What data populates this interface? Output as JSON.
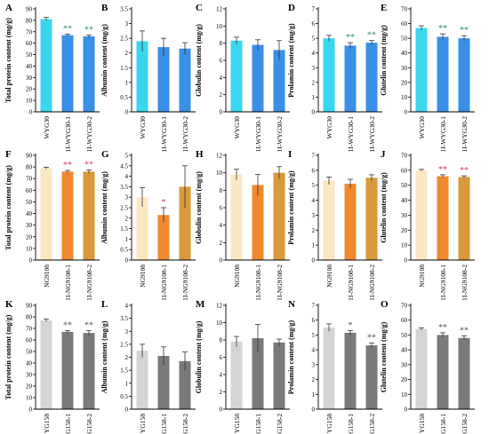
{
  "colors": {
    "wyg_ctrl": "#3ad6f0",
    "wyg_line": "#3a8fe6",
    "ng_ctrl": "#fbe7c2",
    "ng_line1": "#f0892e",
    "ng_line2": "#d89a3a",
    "yg_ctrl": "#d4d4d4",
    "yg_line": "#7a7a7a",
    "sig_dark": "#2e8f5c",
    "sig_pink": "#d63a6b",
    "sig_gray": "#555555",
    "axis": "#000000"
  },
  "chart_data": [
    {
      "panel": "A",
      "type": "bar",
      "ylabel": "Total protein content (mg/g)",
      "ylim": [
        0,
        90
      ],
      "yticks": [
        0,
        10,
        20,
        30,
        40,
        50,
        60,
        70,
        80,
        90
      ],
      "categories": [
        "WYG30",
        "1I-WYG30-1",
        "1I-WYG30-2"
      ],
      "values": [
        81,
        67,
        66
      ],
      "errors": [
        1.5,
        1,
        1.2
      ],
      "significance": [
        "",
        "**",
        "**"
      ]
    },
    {
      "panel": "B",
      "type": "bar",
      "ylabel": "Albumin content (mg/g)",
      "ylim": [
        0,
        3.5
      ],
      "yticks": [
        0,
        0.5,
        1,
        1.5,
        2,
        2.5,
        3,
        3.5
      ],
      "categories": [
        "WYG30",
        "1I-WYG30-1",
        "1I-WYG30-2"
      ],
      "values": [
        2.4,
        2.2,
        2.15
      ],
      "errors": [
        0.35,
        0.3,
        0.2
      ],
      "significance": [
        "",
        "",
        ""
      ]
    },
    {
      "panel": "C",
      "type": "bar",
      "ylabel": "Globulin content (mg/g)",
      "ylim": [
        0,
        12
      ],
      "yticks": [
        0,
        2,
        4,
        6,
        8,
        10,
        12
      ],
      "categories": [
        "WYG30",
        "1I-WYG30-1",
        "1I-WYG30-2"
      ],
      "values": [
        8.3,
        7.8,
        7.2
      ],
      "errors": [
        0.4,
        0.6,
        1.1
      ],
      "significance": [
        "",
        "",
        ""
      ]
    },
    {
      "panel": "D",
      "type": "bar",
      "ylabel": "Prolamin content (mg/g)",
      "ylim": [
        0,
        7
      ],
      "yticks": [
        0,
        1,
        2,
        3,
        4,
        5,
        6,
        7
      ],
      "categories": [
        "WYG30",
        "1I-WYG30-1",
        "1I-WYG30-2"
      ],
      "values": [
        5.0,
        4.5,
        4.7
      ],
      "errors": [
        0.2,
        0.2,
        0.15
      ],
      "significance": [
        "",
        "**",
        "**"
      ]
    },
    {
      "panel": "E",
      "type": "bar",
      "ylabel": "Glutelin content (mg/g)",
      "ylim": [
        0,
        70
      ],
      "yticks": [
        0,
        10,
        20,
        30,
        40,
        50,
        60,
        70
      ],
      "categories": [
        "WYG30",
        "1I-WYG30-1",
        "1I-WYG30-2"
      ],
      "values": [
        57,
        51,
        50
      ],
      "errors": [
        1.5,
        2,
        1.8
      ],
      "significance": [
        "",
        "**",
        "**"
      ]
    },
    {
      "panel": "F",
      "type": "bar",
      "ylabel": "Total protein content (mg/g)",
      "ylim": [
        0,
        90
      ],
      "yticks": [
        0,
        10,
        20,
        30,
        40,
        50,
        60,
        70,
        80,
        90
      ],
      "categories": [
        "NG9108",
        "1I-NG9108-1",
        "1I-NG9108-2"
      ],
      "values": [
        79,
        76,
        76
      ],
      "errors": [
        0.8,
        1,
        1.5
      ],
      "significance": [
        "",
        "**",
        "**"
      ]
    },
    {
      "panel": "G",
      "type": "bar",
      "ylabel": "Albumin content (mg/g)",
      "ylim": [
        0,
        5
      ],
      "yticks": [
        0,
        0.5,
        1,
        1.5,
        2,
        2.5,
        3,
        3.5,
        4,
        4.5,
        5
      ],
      "categories": [
        "NG9108",
        "1I-NG9108-1",
        "1I-NG9108-2"
      ],
      "values": [
        3.0,
        2.15,
        3.5
      ],
      "errors": [
        0.45,
        0.35,
        1.0
      ],
      "significance": [
        "",
        "*",
        ""
      ]
    },
    {
      "panel": "H",
      "type": "bar",
      "ylabel": "Globulin content (mg/g)",
      "ylim": [
        0,
        12
      ],
      "yticks": [
        0,
        2,
        4,
        6,
        8,
        10,
        12
      ],
      "categories": [
        "NG9108",
        "1I-NG9108-1",
        "1I-NG9108-2"
      ],
      "values": [
        9.8,
        8.6,
        10.0
      ],
      "errors": [
        0.6,
        1.2,
        0.7
      ],
      "significance": [
        "",
        "",
        ""
      ]
    },
    {
      "panel": "I",
      "type": "bar",
      "ylabel": "Prolamin content (mg/g)",
      "ylim": [
        0,
        7
      ],
      "yticks": [
        0,
        1,
        2,
        3,
        4,
        5,
        6,
        7
      ],
      "categories": [
        "NG9108",
        "1I-NG9108-1",
        "1I-NG9108-2"
      ],
      "values": [
        5.3,
        5.1,
        5.5
      ],
      "errors": [
        0.25,
        0.3,
        0.2
      ],
      "significance": [
        "",
        "",
        ""
      ]
    },
    {
      "panel": "J",
      "type": "bar",
      "ylabel": "Glutelin content (mg/g)",
      "ylim": [
        0,
        70
      ],
      "yticks": [
        0,
        10,
        20,
        30,
        40,
        50,
        60,
        70
      ],
      "categories": [
        "NG9108",
        "1I-NG9108-1",
        "1I-NG9108-2"
      ],
      "values": [
        60,
        56,
        55.5
      ],
      "errors": [
        0.6,
        1,
        0.8
      ],
      "significance": [
        "",
        "**",
        "**"
      ]
    },
    {
      "panel": "K",
      "type": "bar",
      "ylabel": "Total protein content (mg/g)",
      "ylim": [
        0,
        90
      ],
      "yticks": [
        0,
        10,
        20,
        30,
        40,
        50,
        60,
        70,
        80,
        90
      ],
      "categories": [
        "YG158",
        "1I-YG158-1",
        "1I-YG158-2"
      ],
      "values": [
        77,
        67,
        66
      ],
      "errors": [
        1.2,
        1,
        2
      ],
      "significance": [
        "",
        "**",
        "**"
      ]
    },
    {
      "panel": "L",
      "type": "bar",
      "ylabel": "Albumin content (mg/g)",
      "ylim": [
        0,
        4
      ],
      "yticks": [
        0,
        0.5,
        1,
        1.5,
        2,
        2.5,
        3,
        3.5,
        4
      ],
      "categories": [
        "YG158",
        "1I-YG158-1",
        "1I-YG158-2"
      ],
      "values": [
        2.25,
        2.05,
        1.85
      ],
      "errors": [
        0.25,
        0.35,
        0.35
      ],
      "significance": [
        "",
        "",
        ""
      ]
    },
    {
      "panel": "M",
      "type": "bar",
      "ylabel": "Globulin content (mg/g)",
      "ylim": [
        0,
        12
      ],
      "yticks": [
        0,
        2,
        4,
        6,
        8,
        10,
        12
      ],
      "categories": [
        "YG158",
        "1I-YG158-1",
        "1I-YG158-2"
      ],
      "values": [
        7.8,
        8.2,
        7.7
      ],
      "errors": [
        0.6,
        1.6,
        0.4
      ],
      "significance": [
        "",
        "",
        ""
      ]
    },
    {
      "panel": "N",
      "type": "bar",
      "ylabel": "Prolamin content (mg/g)",
      "ylim": [
        0,
        7
      ],
      "yticks": [
        0,
        1,
        2,
        3,
        4,
        5,
        6,
        7
      ],
      "categories": [
        "YG158",
        "1I-YG158-1",
        "1I-YG158-2"
      ],
      "values": [
        5.5,
        5.15,
        4.3
      ],
      "errors": [
        0.25,
        0.15,
        0.15
      ],
      "significance": [
        "",
        "*",
        "**"
      ]
    },
    {
      "panel": "O",
      "type": "bar",
      "ylabel": "Glutelin content (mg/g)",
      "ylim": [
        0,
        70
      ],
      "yticks": [
        0,
        10,
        20,
        30,
        40,
        50,
        60,
        70
      ],
      "categories": [
        "YG158",
        "1I-YG158-1",
        "1I-YG158-2"
      ],
      "values": [
        54,
        50,
        48
      ],
      "errors": [
        0.8,
        1.5,
        1.5
      ],
      "significance": [
        "",
        "**",
        "**"
      ]
    }
  ]
}
